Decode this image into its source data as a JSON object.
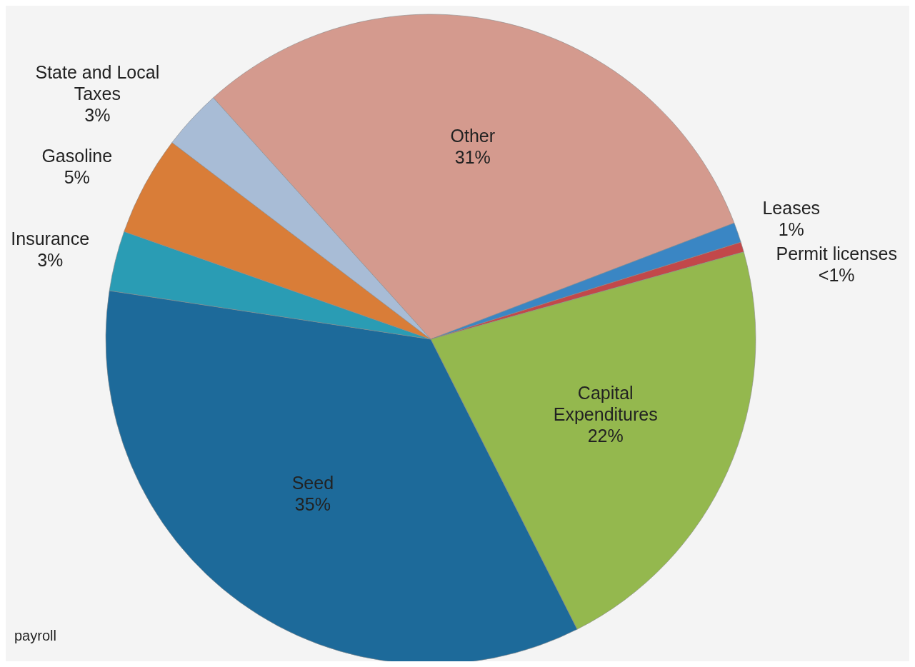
{
  "chart_data": {
    "type": "pie",
    "categories": [
      "Other",
      "Leases",
      "Permit licenses",
      "Capital Expenditures",
      "Seed",
      "Insurance",
      "Gasoline",
      "State and Local Taxes"
    ],
    "values": [
      31,
      1,
      0.5,
      22,
      35,
      3,
      5,
      3
    ],
    "value_labels": [
      "31%",
      "1%",
      "<1%",
      "22%",
      "35%",
      "3%",
      "5%",
      "3%"
    ],
    "colors": [
      "#d49a8e",
      "#3a86c4",
      "#c2484a",
      "#94b84e",
      "#1d6a9a",
      "#2a9cb4",
      "#d97d38",
      "#a8bcd6"
    ],
    "annotations": [
      "payroll"
    ]
  }
}
